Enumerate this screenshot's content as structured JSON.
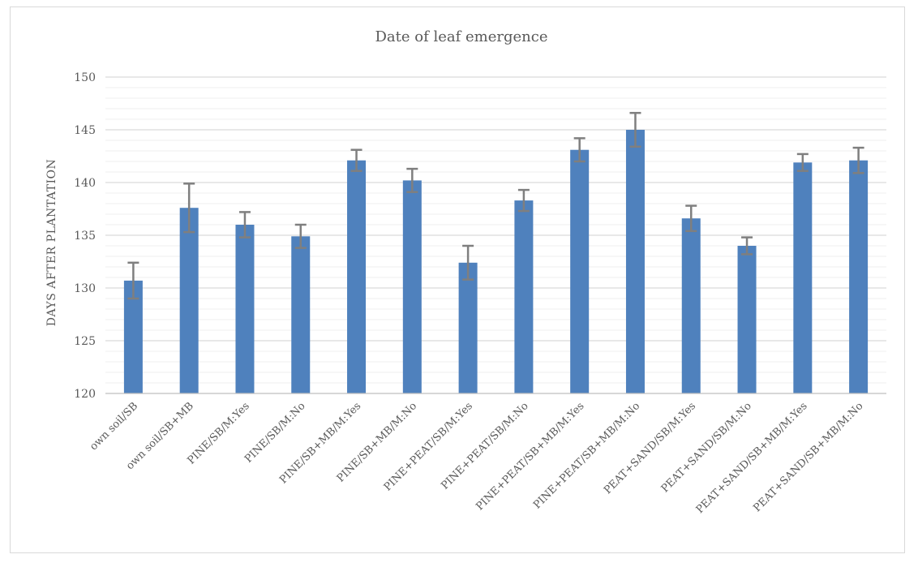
{
  "chart_data": {
    "type": "bar",
    "title": "Date of leaf emergence",
    "xlabel": "",
    "ylabel": "DAYS AFTER PLANTATION",
    "ylim": [
      120,
      150
    ],
    "yticks": [
      120,
      125,
      130,
      135,
      140,
      145,
      150
    ],
    "grid": true,
    "minor_grid": true,
    "legend": "none",
    "bar_color": "#4f81bd",
    "error_bar_color": "#7f7f7f",
    "categories": [
      "own soil/SB",
      "own soil/SB+MB",
      "PINE/SB/M:Yes",
      "PINE/SB/M:No",
      "PINE/SB+MB/M:Yes",
      "PINE/SB+MB/M:No",
      "PINE+PEAT/SB/M:Yes",
      "PINE+PEAT/SB/M:No",
      "PINE+PEAT/SB+MB/M:Yes",
      "PINE+PEAT/SB+MB/M:No",
      "PEAT+SAND/SB/M:Yes",
      "PEAT+SAND/SB/M:No",
      "PEAT+SAND/SB+MB/M:Yes",
      "PEAT+SAND/SB+MB/M:No"
    ],
    "values": [
      130.7,
      137.6,
      136.0,
      134.9,
      142.1,
      140.2,
      132.4,
      138.3,
      143.1,
      145.0,
      136.6,
      134.0,
      141.9,
      142.1
    ],
    "errors": [
      1.7,
      2.3,
      1.2,
      1.1,
      1.0,
      1.1,
      1.6,
      1.0,
      1.1,
      1.6,
      1.2,
      0.8,
      0.8,
      1.2
    ]
  }
}
